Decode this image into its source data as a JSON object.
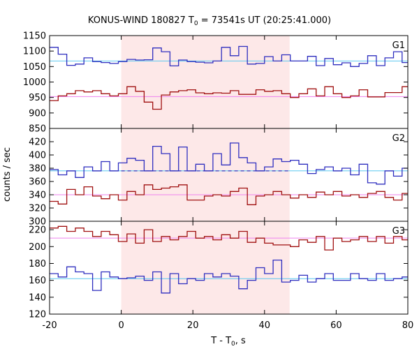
{
  "chart_data": {
    "type": "line",
    "title": "KONUS-WIND 180827 T",
    "title_sub": "0",
    "title_rest": " = 73541s UT (20:25:41.000)",
    "xlabel": "T - T",
    "xlabel_sub": "0",
    "xlabel_rest": ", s",
    "ylabel": "counts / sec",
    "xlim": [
      -20,
      80
    ],
    "x_ticks": [
      -20,
      0,
      20,
      40,
      60,
      80
    ],
    "shade_range": [
      0,
      47
    ],
    "colors": {
      "blue": "#2e2ebf",
      "red": "#a01010",
      "blue_bg": "#5bc8ef",
      "red_bg": "#ee82ee",
      "shade": "#fde8e8"
    },
    "bin_edges": [
      -20,
      -17.6,
      -15.2,
      -12.8,
      -10.4,
      -8,
      -5.6,
      -3.2,
      -0.8,
      1.6,
      4,
      6.4,
      8.8,
      11.2,
      13.6,
      16,
      18.4,
      20.8,
      23.2,
      25.6,
      28,
      30.4,
      32.8,
      35.2,
      37.6,
      40,
      42.4,
      44.8,
      47.2,
      49.6,
      52,
      54.4,
      56.8,
      59.2,
      61.6,
      64,
      66.4,
      68.8,
      71.2,
      73.6,
      76,
      78.4,
      80
    ],
    "panels": [
      {
        "name": "G1",
        "ylim": [
          850,
          1150
        ],
        "y_ticks": [
          850,
          900,
          950,
          1000,
          1050,
          1100,
          1150
        ],
        "series": [
          {
            "color": "blue",
            "background": 1068,
            "values": [
              1112,
              1090,
              1054,
              1058,
              1078,
              1066,
              1063,
              1060,
              1066,
              1073,
              1071,
              1072,
              1110,
              1098,
              1052,
              1071,
              1066,
              1064,
              1062,
              1068,
              1112,
              1085,
              1115,
              1058,
              1060,
              1082,
              1068,
              1088,
              1068,
              1068,
              1083,
              1053,
              1076,
              1056,
              1062,
              1050,
              1060,
              1085,
              1053,
              1078,
              1098,
              1063
            ]
          },
          {
            "color": "red",
            "background": 953,
            "values": [
              940,
              955,
              962,
              972,
              968,
              972,
              962,
              955,
              962,
              985,
              970,
              935,
              912,
              958,
              968,
              972,
              975,
              965,
              962,
              965,
              964,
              972,
              960,
              960,
              975,
              970,
              972,
              962,
              950,
              962,
              978,
              955,
              985,
              962,
              950,
              955,
              975,
              952,
              952,
              966,
              966,
              985
            ]
          }
        ]
      },
      {
        "name": "G2",
        "ylim": [
          300,
          440
        ],
        "y_ticks": [
          300,
          320,
          340,
          360,
          380,
          400,
          420
        ],
        "series": [
          {
            "color": "blue",
            "background": 376,
            "dashed_background": {
              "range": [
                0,
                47
              ],
              "value": 376
            },
            "values": [
              378,
              370,
              376,
              366,
              382,
              376,
              390,
              376,
              388,
              395,
              392,
              376,
              413,
              402,
              376,
              412,
              376,
              386,
              376,
              402,
              385,
              418,
              396,
              388,
              376,
              382,
              394,
              390,
              392,
              386,
              372,
              378,
              382,
              376,
              380,
              370,
              386,
              358,
              356,
              376,
              368,
              380
            ]
          },
          {
            "color": "red",
            "background": 340,
            "values": [
              330,
              326,
              348,
              340,
              352,
              338,
              334,
              340,
              332,
              345,
              340,
              355,
              348,
              350,
              352,
              355,
              332,
              332,
              338,
              340,
              338,
              345,
              350,
              325,
              338,
              340,
              345,
              340,
              335,
              340,
              336,
              344,
              340,
              345,
              338,
              340,
              336,
              342,
              345,
              336,
              332,
              342
            ]
          }
        ]
      },
      {
        "name": "G3",
        "ylim": [
          120,
          230
        ],
        "y_ticks": [
          120,
          140,
          160,
          180,
          200,
          220
        ],
        "series": [
          {
            "color": "blue",
            "background": 162,
            "values": [
              168,
              164,
              176,
              170,
              168,
              148,
              170,
              164,
              162,
              163,
              165,
              160,
              170,
              145,
              168,
              156,
              162,
              160,
              168,
              164,
              168,
              165,
              150,
              160,
              175,
              168,
              184,
              158,
              160,
              166,
              158,
              162,
              168,
              160,
              160,
              168,
              162,
              160,
              168,
              160,
              162,
              164
            ]
          },
          {
            "color": "red",
            "background": 210,
            "values": [
              222,
              224,
              218,
              222,
              218,
              212,
              218,
              214,
              206,
              215,
              204,
              220,
              206,
              212,
              208,
              212,
              218,
              210,
              212,
              208,
              214,
              210,
              218,
              205,
              210,
              204,
              202,
              202,
              200,
              208,
              205,
              212,
              196,
              210,
              206,
              208,
              212,
              206,
              212,
              204,
              212,
              208
            ]
          }
        ]
      }
    ]
  }
}
